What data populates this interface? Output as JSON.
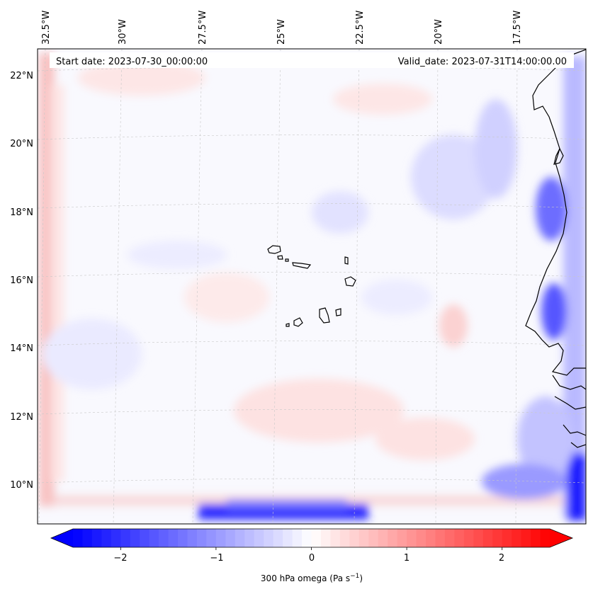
{
  "map": {
    "start_date_label": "Start date: 2023-07-30_00:00:00",
    "valid_date_label": "Valid_date: 2023-07-31T14:00:00.00",
    "lon_labels": [
      "32.5°W",
      "30°W",
      "27.5°W",
      "25°W",
      "22.5°W",
      "20°W",
      "17.5°W"
    ],
    "lat_labels": [
      "22°N",
      "20°N",
      "18°N",
      "16°N",
      "14°N",
      "12°N",
      "10°N"
    ]
  },
  "colorbar": {
    "ticks": [
      "−2",
      "−1",
      "0",
      "1",
      "2"
    ],
    "tick_values": [
      -2,
      -1,
      0,
      1,
      2
    ],
    "range": [
      -2.5,
      2.5
    ],
    "label_main": "300 hPa omega (Pa s",
    "label_exp": "−1",
    "label_close": ")",
    "color_min": "#0000ff",
    "color_mid": "#ffffff",
    "color_max": "#ff0000"
  },
  "colors": {
    "coastline": "#000000",
    "gridline": "#c8c8c8"
  }
}
